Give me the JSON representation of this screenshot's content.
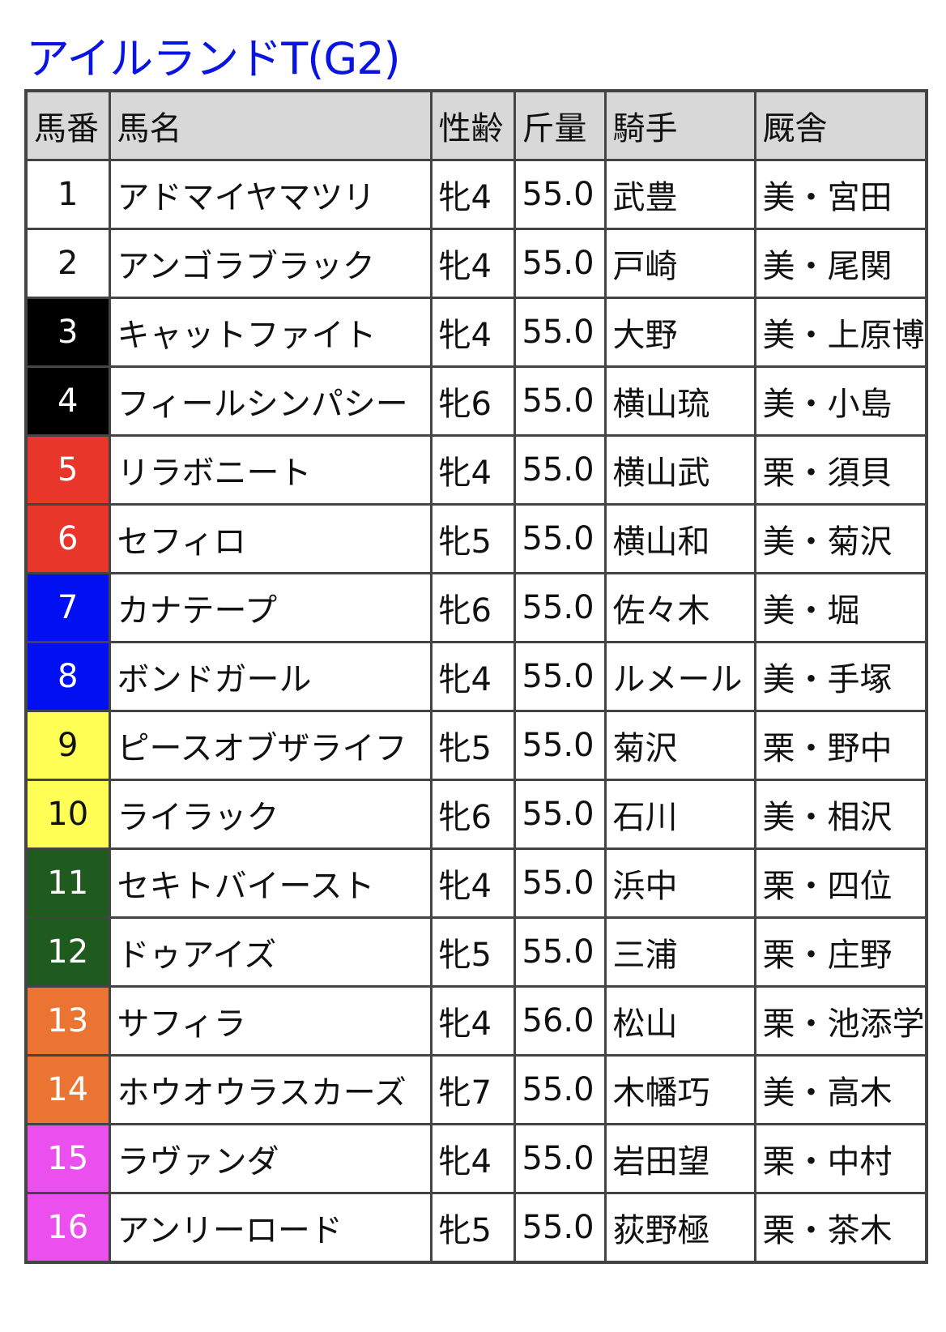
{
  "title": "アイルランドT(G2)",
  "headers": [
    "馬番",
    "馬名",
    "性齢",
    "斤量",
    "騎手",
    "厩舎"
  ],
  "frame_colors": {
    "1": "#ffffff",
    "2": "#000000",
    "3": "#e8362a",
    "4": "#0010f0",
    "5": "#ffff55",
    "6": "#1f5a1f",
    "7": "#eb7432",
    "8": "#eb50ef"
  },
  "rows": [
    {
      "no": "1",
      "frame": 1,
      "name": "アドマイヤマツリ",
      "sexage": "牝4",
      "weight": "55.0",
      "jockey": "武豊",
      "stable": "美・宮田"
    },
    {
      "no": "2",
      "frame": 1,
      "name": "アンゴラブラック",
      "sexage": "牝4",
      "weight": "55.0",
      "jockey": "戸崎",
      "stable": "美・尾関"
    },
    {
      "no": "3",
      "frame": 2,
      "name": "キャットファイト",
      "sexage": "牝4",
      "weight": "55.0",
      "jockey": "大野",
      "stable": "美・上原博"
    },
    {
      "no": "4",
      "frame": 2,
      "name": "フィールシンパシー",
      "sexage": "牝6",
      "weight": "55.0",
      "jockey": "横山琉",
      "stable": "美・小島"
    },
    {
      "no": "5",
      "frame": 3,
      "name": "リラボニート",
      "sexage": "牝4",
      "weight": "55.0",
      "jockey": "横山武",
      "stable": "栗・須貝"
    },
    {
      "no": "6",
      "frame": 3,
      "name": "セフィロ",
      "sexage": "牝5",
      "weight": "55.0",
      "jockey": "横山和",
      "stable": "美・菊沢"
    },
    {
      "no": "7",
      "frame": 4,
      "name": "カナテープ",
      "sexage": "牝6",
      "weight": "55.0",
      "jockey": "佐々木",
      "stable": "美・堀"
    },
    {
      "no": "8",
      "frame": 4,
      "name": "ボンドガール",
      "sexage": "牝4",
      "weight": "55.0",
      "jockey": "ルメール",
      "stable": "美・手塚"
    },
    {
      "no": "9",
      "frame": 5,
      "name": "ピースオブザライフ",
      "sexage": "牝5",
      "weight": "55.0",
      "jockey": "菊沢",
      "stable": "栗・野中"
    },
    {
      "no": "10",
      "frame": 5,
      "name": "ライラック",
      "sexage": "牝6",
      "weight": "55.0",
      "jockey": "石川",
      "stable": "美・相沢"
    },
    {
      "no": "11",
      "frame": 6,
      "name": "セキトバイースト",
      "sexage": "牝4",
      "weight": "55.0",
      "jockey": "浜中",
      "stable": "栗・四位"
    },
    {
      "no": "12",
      "frame": 6,
      "name": "ドゥアイズ",
      "sexage": "牝5",
      "weight": "55.0",
      "jockey": "三浦",
      "stable": "栗・庄野"
    },
    {
      "no": "13",
      "frame": 7,
      "name": "サフィラ",
      "sexage": "牝4",
      "weight": "56.0",
      "jockey": "松山",
      "stable": "栗・池添学"
    },
    {
      "no": "14",
      "frame": 7,
      "name": "ホウオウラスカーズ",
      "sexage": "牝7",
      "weight": "55.0",
      "jockey": "木幡巧",
      "stable": "美・高木"
    },
    {
      "no": "15",
      "frame": 8,
      "name": "ラヴァンダ",
      "sexage": "牝4",
      "weight": "55.0",
      "jockey": "岩田望",
      "stable": "栗・中村"
    },
    {
      "no": "16",
      "frame": 8,
      "name": "アンリーロード",
      "sexage": "牝5",
      "weight": "55.0",
      "jockey": "荻野極",
      "stable": "栗・茶木"
    }
  ]
}
